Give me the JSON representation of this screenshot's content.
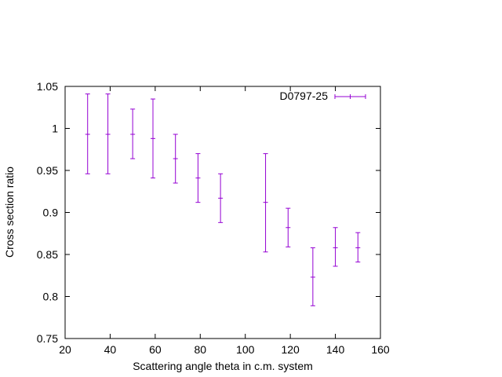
{
  "chart_data": {
    "type": "scatter",
    "xlabel": "Scattering angle theta in c.m. system",
    "ylabel": "Cross section ratio",
    "xlim": [
      20,
      160
    ],
    "ylim": [
      0.75,
      1.05
    ],
    "xticks": [
      "20",
      "40",
      "60",
      "80",
      "100",
      "120",
      "140",
      "160"
    ],
    "yticks": [
      "0.75",
      "0.8",
      "0.85",
      "0.9",
      "0.95",
      "1",
      "1.05"
    ],
    "legend_position": "top-right",
    "grid": false,
    "series": [
      {
        "name": "D0797-25",
        "color": "#9400d3",
        "marker": "errorbar",
        "points": [
          {
            "x": 30,
            "y": 0.993,
            "ylow": 0.946,
            "yhigh": 1.041
          },
          {
            "x": 39,
            "y": 0.993,
            "ylow": 0.946,
            "yhigh": 1.041
          },
          {
            "x": 50,
            "y": 0.993,
            "ylow": 0.964,
            "yhigh": 1.023
          },
          {
            "x": 59,
            "y": 0.988,
            "ylow": 0.941,
            "yhigh": 1.035
          },
          {
            "x": 69,
            "y": 0.964,
            "ylow": 0.935,
            "yhigh": 0.993
          },
          {
            "x": 79,
            "y": 0.941,
            "ylow": 0.912,
            "yhigh": 0.97
          },
          {
            "x": 89,
            "y": 0.917,
            "ylow": 0.888,
            "yhigh": 0.946
          },
          {
            "x": 109,
            "y": 0.912,
            "ylow": 0.853,
            "yhigh": 0.97
          },
          {
            "x": 119,
            "y": 0.882,
            "ylow": 0.859,
            "yhigh": 0.905
          },
          {
            "x": 130,
            "y": 0.823,
            "ylow": 0.789,
            "yhigh": 0.858
          },
          {
            "x": 140,
            "y": 0.858,
            "ylow": 0.836,
            "yhigh": 0.882
          },
          {
            "x": 150,
            "y": 0.858,
            "ylow": 0.841,
            "yhigh": 0.876
          }
        ]
      }
    ]
  }
}
